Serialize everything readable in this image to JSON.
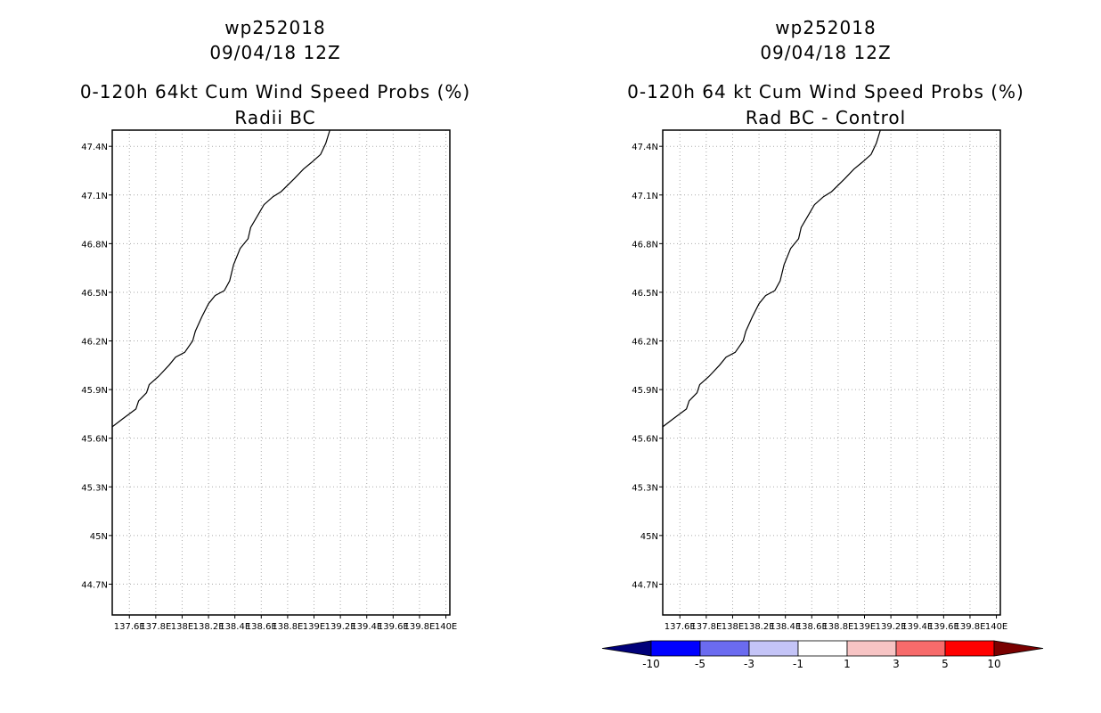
{
  "chart_data": [
    {
      "type": "map",
      "title_lines": [
        "wp252018",
        "09/04/18 12Z",
        "0-120h 64kt Cum Wind Speed Probs (%)",
        "Radii BC"
      ],
      "xlabel": "",
      "ylabel": "",
      "x_ticks": [
        "137.6E",
        "137.8E",
        "138E",
        "138.2E",
        "138.4E",
        "138.6E",
        "138.8E",
        "139E",
        "139.2E",
        "139.4E",
        "139.6E",
        "139.8E",
        "140E"
      ],
      "y_ticks": [
        "47.4N",
        "47.1N",
        "46.8N",
        "46.5N",
        "46.2N",
        "45.9N",
        "45.6N",
        "45.3N",
        "45N",
        "44.7N"
      ],
      "x_tick_values": [
        137.6,
        137.8,
        138.0,
        138.2,
        138.4,
        138.6,
        138.8,
        139.0,
        139.2,
        139.4,
        139.6,
        139.8,
        140.0
      ],
      "y_tick_values": [
        47.4,
        47.1,
        46.8,
        46.5,
        46.2,
        45.9,
        45.6,
        45.3,
        45.0,
        44.7
      ],
      "xlim": [
        137.47,
        140.03
      ],
      "ylim": [
        44.51,
        47.5
      ],
      "grid": true,
      "coastline": [
        [
          137.47,
          45.67
        ],
        [
          137.55,
          45.72
        ],
        [
          137.65,
          45.78
        ],
        [
          137.67,
          45.83
        ],
        [
          137.73,
          45.88
        ],
        [
          137.75,
          45.93
        ],
        [
          137.82,
          45.98
        ],
        [
          137.9,
          46.05
        ],
        [
          137.95,
          46.1
        ],
        [
          138.02,
          46.13
        ],
        [
          138.08,
          46.2
        ],
        [
          138.1,
          46.26
        ],
        [
          138.15,
          46.35
        ],
        [
          138.2,
          46.43
        ],
        [
          138.25,
          46.48
        ],
        [
          138.32,
          46.51
        ],
        [
          138.36,
          46.57
        ],
        [
          138.39,
          46.67
        ],
        [
          138.44,
          46.77
        ],
        [
          138.5,
          46.83
        ],
        [
          138.52,
          46.9
        ],
        [
          138.57,
          46.97
        ],
        [
          138.62,
          47.04
        ],
        [
          138.69,
          47.09
        ],
        [
          138.75,
          47.12
        ],
        [
          138.85,
          47.2
        ],
        [
          138.92,
          47.26
        ],
        [
          138.98,
          47.3
        ],
        [
          139.05,
          47.35
        ],
        [
          139.09,
          47.42
        ],
        [
          139.12,
          47.5
        ]
      ]
    },
    {
      "type": "map",
      "title_lines": [
        "wp252018",
        "09/04/18 12Z",
        "0-120h 64 kt Cum Wind Speed Probs (%)",
        "Rad BC - Control"
      ],
      "xlabel": "",
      "ylabel": "",
      "x_ticks": [
        "137.6E",
        "137.8E",
        "138E",
        "138.2E",
        "138.4E",
        "138.6E",
        "138.8E",
        "139E",
        "139.2E",
        "139.4E",
        "139.6E",
        "139.8E",
        "140E"
      ],
      "y_ticks": [
        "47.4N",
        "47.1N",
        "46.8N",
        "46.5N",
        "46.2N",
        "45.9N",
        "45.6N",
        "45.3N",
        "45N",
        "44.7N"
      ],
      "x_tick_values": [
        137.6,
        137.8,
        138.0,
        138.2,
        138.4,
        138.6,
        138.8,
        139.0,
        139.2,
        139.4,
        139.6,
        139.8,
        140.0
      ],
      "y_tick_values": [
        47.4,
        47.1,
        46.8,
        46.5,
        46.2,
        45.9,
        45.6,
        45.3,
        45.0,
        44.7
      ],
      "xlim": [
        137.47,
        140.03
      ],
      "ylim": [
        44.51,
        47.5
      ],
      "grid": true,
      "coastline": [
        [
          137.47,
          45.67
        ],
        [
          137.55,
          45.72
        ],
        [
          137.65,
          45.78
        ],
        [
          137.67,
          45.83
        ],
        [
          137.73,
          45.88
        ],
        [
          137.75,
          45.93
        ],
        [
          137.82,
          45.98
        ],
        [
          137.9,
          46.05
        ],
        [
          137.95,
          46.1
        ],
        [
          138.02,
          46.13
        ],
        [
          138.08,
          46.2
        ],
        [
          138.1,
          46.26
        ],
        [
          138.15,
          46.35
        ],
        [
          138.2,
          46.43
        ],
        [
          138.25,
          46.48
        ],
        [
          138.32,
          46.51
        ],
        [
          138.36,
          46.57
        ],
        [
          138.39,
          46.67
        ],
        [
          138.44,
          46.77
        ],
        [
          138.5,
          46.83
        ],
        [
          138.52,
          46.9
        ],
        [
          138.57,
          46.97
        ],
        [
          138.62,
          47.04
        ],
        [
          138.69,
          47.09
        ],
        [
          138.75,
          47.12
        ],
        [
          138.85,
          47.2
        ],
        [
          138.92,
          47.26
        ],
        [
          138.98,
          47.3
        ],
        [
          139.05,
          47.35
        ],
        [
          139.09,
          47.42
        ],
        [
          139.12,
          47.5
        ]
      ],
      "colorbar": {
        "labels": [
          "-10",
          "-5",
          "-3",
          "-1",
          "1",
          "3",
          "5",
          "10"
        ],
        "colors": [
          "#00007a",
          "#0000ff",
          "#6b6bf0",
          "#c4c4f7",
          "#ffffff",
          "#f7c4c4",
          "#f76b6b",
          "#ff0000",
          "#7a0000"
        ]
      }
    }
  ]
}
